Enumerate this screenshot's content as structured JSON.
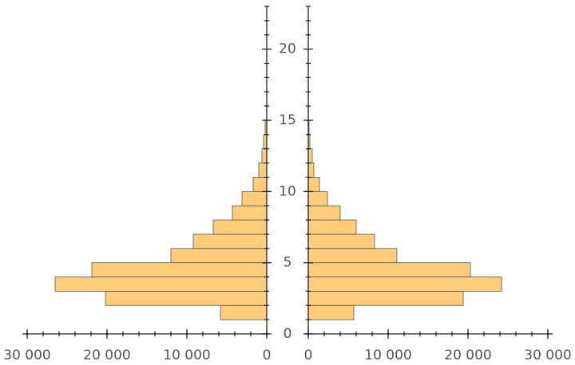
{
  "chart_data": {
    "type": "paired_histogram",
    "bins": [
      1,
      2,
      3,
      4,
      5,
      6,
      7,
      8,
      9,
      10,
      11,
      12,
      13,
      14,
      15
    ],
    "series": [
      {
        "color": "#fdcd7b",
        "values": [
          5800,
          20200,
          26500,
          21900,
          12000,
          9200,
          6700,
          4300,
          3100,
          1700,
          1000,
          600,
          400,
          200
        ]
      },
      {
        "color": "#fdcd7b",
        "values": [
          5700,
          19400,
          24200,
          20300,
          11100,
          8300,
          6000,
          4000,
          2400,
          1400,
          700,
          500,
          200,
          100
        ]
      }
    ],
    "xlim": [
      0,
      30600
    ],
    "xticks": [
      0,
      {
        "value": 10000,
        "label": "10 000"
      },
      {
        "value": 20000,
        "label": "20 000"
      },
      {
        "value": 30000,
        "label": "30 000"
      }
    ],
    "ylim": [
      0,
      23
    ],
    "yticks": [
      0,
      5,
      10,
      15,
      20
    ]
  }
}
